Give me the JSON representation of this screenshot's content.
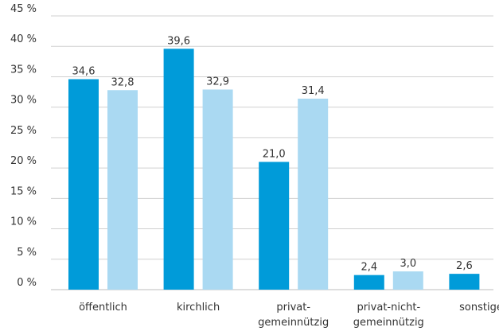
{
  "chart_data": {
    "type": "bar",
    "title": "",
    "xlabel": "",
    "ylabel": "",
    "ylim": [
      0,
      45
    ],
    "yticks": [
      0,
      5,
      10,
      15,
      20,
      25,
      30,
      35,
      40,
      45
    ],
    "ytick_labels": [
      "0 %",
      "5 %",
      "10 %",
      "15 %",
      "20 %",
      "25 %",
      "30 %",
      "35 %",
      "40 %",
      "45 %"
    ],
    "grid": true,
    "legend": "none",
    "categories": [
      [
        "öffentlich"
      ],
      [
        "kirchlich"
      ],
      [
        "privat-",
        "gemeinnützig"
      ],
      [
        "privat-nicht-",
        "gemeinnützig"
      ],
      [
        "sonstiges"
      ]
    ],
    "series": [
      {
        "color": "#009bd9",
        "values": [
          34.6,
          39.6,
          21.0,
          2.4,
          2.6
        ],
        "labels": [
          "34,6",
          "39,6",
          "21,0",
          "2,4",
          "2,6"
        ]
      },
      {
        "color": "#aad9f2",
        "values": [
          32.8,
          32.9,
          31.4,
          3.0,
          null
        ],
        "labels": [
          "32,8",
          "32,9",
          "31,4",
          "3,0",
          ""
        ]
      }
    ]
  }
}
